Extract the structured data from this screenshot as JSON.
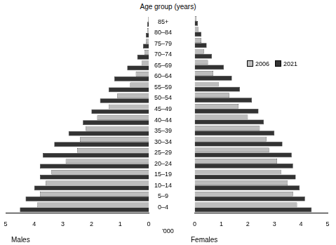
{
  "chart_data": [
    {
      "type": "bar",
      "orientation": "horizontal",
      "ylabel": "Age group (years)",
      "annotation": "'000",
      "xlabel": "Males",
      "categories": [
        "0–4",
        "5–9",
        "10–14",
        "15–19",
        "20–24",
        "25–29",
        "30–34",
        "35–39",
        "40–44",
        "45–49",
        "50–54",
        "55–59",
        "60–64",
        "65–69",
        "70–74",
        "75–79",
        "80–84",
        "85+"
      ],
      "series": [
        {
          "name": "2006",
          "color": "#bdbdbd",
          "values": [
            3.9,
            3.8,
            3.6,
            3.4,
            2.9,
            2.5,
            2.4,
            2.2,
            1.8,
            1.4,
            1.1,
            0.65,
            0.45,
            0.25,
            0.15,
            0.1,
            0.05,
            0.02
          ]
        },
        {
          "name": "2021",
          "color": "#333333",
          "values": [
            4.5,
            4.3,
            4.0,
            3.8,
            3.8,
            3.7,
            3.3,
            2.8,
            2.3,
            2.0,
            1.7,
            1.4,
            1.2,
            0.75,
            0.4,
            0.2,
            0.1,
            0.05
          ]
        }
      ],
      "xlim": [
        0,
        5
      ],
      "xticks": [
        0,
        1,
        2,
        3,
        4,
        5
      ],
      "grid": false
    },
    {
      "type": "bar",
      "orientation": "horizontal",
      "xlabel": "Females",
      "legend": "upper right",
      "categories": [
        "0–4",
        "5–9",
        "10–14",
        "15–19",
        "20–24",
        "25–29",
        "30–34",
        "35–39",
        "40–44",
        "45–49",
        "50–54",
        "55–59",
        "60–64",
        "65–69",
        "70–74",
        "75–79",
        "80–84",
        "85+"
      ],
      "series": [
        {
          "name": "2006",
          "color": "#bdbdbd",
          "values": [
            3.85,
            3.7,
            3.5,
            3.25,
            3.1,
            2.8,
            2.7,
            2.45,
            2.0,
            1.65,
            1.3,
            0.9,
            0.7,
            0.5,
            0.35,
            0.25,
            0.15,
            0.07
          ]
        },
        {
          "name": "2021",
          "color": "#333333",
          "values": [
            4.4,
            4.15,
            3.95,
            3.8,
            3.7,
            3.65,
            3.3,
            3.0,
            2.6,
            2.4,
            2.15,
            1.7,
            1.4,
            1.1,
            0.65,
            0.45,
            0.25,
            0.12
          ]
        }
      ],
      "xlim": [
        0,
        5
      ],
      "xticks": [
        0,
        1,
        2,
        3,
        4,
        5
      ],
      "grid": false
    }
  ]
}
